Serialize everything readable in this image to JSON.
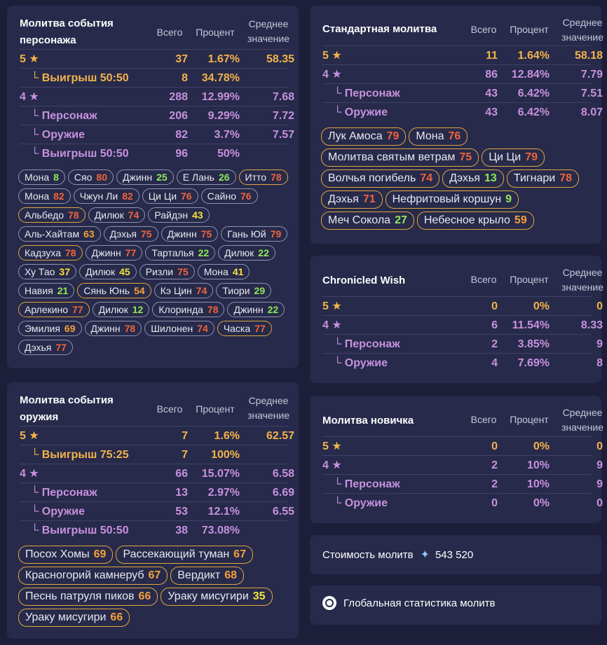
{
  "colors": {
    "bg": "#1d1e3a",
    "card": "#272a4a",
    "gold": "#f2b34a",
    "purple": "#c791de",
    "red": "#f0643c",
    "green": "#8fe85a",
    "yellow": "#f4e23c"
  },
  "headers": {
    "total": "Всего",
    "percent": "Процент",
    "avg": "Среднее значение"
  },
  "character": {
    "title": "Молитва события персонажа",
    "rows": [
      {
        "label": "5 ★",
        "total": "37",
        "pct": "1.67%",
        "avg": "58.35",
        "color": "gold"
      },
      {
        "label": "└ Выигрыш 50:50",
        "total": "8",
        "pct": "34.78%",
        "avg": "",
        "color": "gold"
      },
      {
        "label": "4 ★",
        "total": "288",
        "pct": "12.99%",
        "avg": "7.68",
        "color": "purp"
      },
      {
        "label": "└ Персонаж",
        "total": "206",
        "pct": "9.29%",
        "avg": "7.72",
        "color": "purp"
      },
      {
        "label": "└ Оружие",
        "total": "82",
        "pct": "3.7%",
        "avg": "7.57",
        "color": "purp"
      },
      {
        "label": "└ Выигрыш 50:50",
        "total": "96",
        "pct": "50%",
        "avg": "",
        "color": "purp"
      }
    ],
    "chips": [
      {
        "name": "Мона",
        "n": "8",
        "c": "green",
        "b": ""
      },
      {
        "name": "Сяо",
        "n": "80",
        "c": "red",
        "b": ""
      },
      {
        "name": "Джинн",
        "n": "25",
        "c": "green",
        "b": ""
      },
      {
        "name": "Е Лань",
        "n": "26",
        "c": "green",
        "b": ""
      },
      {
        "name": "Итто",
        "n": "78",
        "c": "red",
        "b": "gold"
      },
      {
        "name": "Мона",
        "n": "82",
        "c": "red",
        "b": ""
      },
      {
        "name": "Чжун Ли",
        "n": "82",
        "c": "red",
        "b": ""
      },
      {
        "name": "Ци Ци",
        "n": "76",
        "c": "red",
        "b": ""
      },
      {
        "name": "Сайно",
        "n": "76",
        "c": "red",
        "b": ""
      },
      {
        "name": "Альбедо",
        "n": "78",
        "c": "red",
        "b": "gold"
      },
      {
        "name": "Дилюк",
        "n": "74",
        "c": "red",
        "b": ""
      },
      {
        "name": "Райдэн",
        "n": "43",
        "c": "yellow",
        "b": ""
      },
      {
        "name": "Аль-Хайтам",
        "n": "63",
        "c": "orange",
        "b": ""
      },
      {
        "name": "Дэхья",
        "n": "75",
        "c": "red",
        "b": ""
      },
      {
        "name": "Джинн",
        "n": "75",
        "c": "red",
        "b": ""
      },
      {
        "name": "Гань Юй",
        "n": "79",
        "c": "red",
        "b": ""
      },
      {
        "name": "Кадзуха",
        "n": "78",
        "c": "red",
        "b": "gold"
      },
      {
        "name": "Джинн",
        "n": "77",
        "c": "red",
        "b": ""
      },
      {
        "name": "Тарталья",
        "n": "22",
        "c": "green",
        "b": ""
      },
      {
        "name": "Дилюк",
        "n": "22",
        "c": "green",
        "b": ""
      },
      {
        "name": "Ху Тао",
        "n": "37",
        "c": "yellow",
        "b": ""
      },
      {
        "name": "Дилюк",
        "n": "45",
        "c": "yellow",
        "b": ""
      },
      {
        "name": "Ризли",
        "n": "75",
        "c": "red",
        "b": ""
      },
      {
        "name": "Мона",
        "n": "41",
        "c": "yellow",
        "b": ""
      },
      {
        "name": "Навия",
        "n": "21",
        "c": "green",
        "b": ""
      },
      {
        "name": "Сянь Юнь",
        "n": "54",
        "c": "orange",
        "b": "gold"
      },
      {
        "name": "Кэ Цин",
        "n": "74",
        "c": "red",
        "b": ""
      },
      {
        "name": "Тиори",
        "n": "29",
        "c": "green",
        "b": ""
      },
      {
        "name": "Арлекино",
        "n": "77",
        "c": "red",
        "b": "gold"
      },
      {
        "name": "Дилюк",
        "n": "12",
        "c": "green",
        "b": ""
      },
      {
        "name": "Клоринда",
        "n": "78",
        "c": "red",
        "b": ""
      },
      {
        "name": "Джинн",
        "n": "22",
        "c": "green",
        "b": ""
      },
      {
        "name": "Эмилия",
        "n": "69",
        "c": "orange",
        "b": ""
      },
      {
        "name": "Джинн",
        "n": "78",
        "c": "red",
        "b": ""
      },
      {
        "name": "Шилонен",
        "n": "74",
        "c": "red",
        "b": ""
      },
      {
        "name": "Часка",
        "n": "77",
        "c": "red",
        "b": "gold"
      },
      {
        "name": "Дэхья",
        "n": "77",
        "c": "red",
        "b": ""
      }
    ]
  },
  "weapon": {
    "title": "Молитва события оружия",
    "rows": [
      {
        "label": "5 ★",
        "total": "7",
        "pct": "1.6%",
        "avg": "62.57",
        "color": "gold"
      },
      {
        "label": "└ Выигрыш 75:25",
        "total": "7",
        "pct": "100%",
        "avg": "",
        "color": "gold"
      },
      {
        "label": "4 ★",
        "total": "66",
        "pct": "15.07%",
        "avg": "6.58",
        "color": "purp"
      },
      {
        "label": "└ Персонаж",
        "total": "13",
        "pct": "2.97%",
        "avg": "6.69",
        "color": "purp"
      },
      {
        "label": "└ Оружие",
        "total": "53",
        "pct": "12.1%",
        "avg": "6.55",
        "color": "purp"
      },
      {
        "label": "└ Выигрыш 50:50",
        "total": "38",
        "pct": "73.08%",
        "avg": "",
        "color": "purp"
      }
    ],
    "chips": [
      {
        "name": "Посох Хомы",
        "n": "69",
        "c": "orange",
        "b": "gold"
      },
      {
        "name": "Рассекающий туман",
        "n": "67",
        "c": "orange",
        "b": "gold"
      },
      {
        "name": "Красногорий камнеруб",
        "n": "67",
        "c": "orange",
        "b": "gold"
      },
      {
        "name": "Вердикт",
        "n": "68",
        "c": "orange",
        "b": "gold"
      },
      {
        "name": "Песнь патруля пиков",
        "n": "66",
        "c": "orange",
        "b": "gold"
      },
      {
        "name": "Ураку мисугири",
        "n": "35",
        "c": "yellow",
        "b": "gold"
      },
      {
        "name": "Ураку мисугири",
        "n": "66",
        "c": "orange",
        "b": "gold"
      }
    ]
  },
  "standard": {
    "title": "Стандартная молитва",
    "rows": [
      {
        "label": "5 ★",
        "total": "11",
        "pct": "1.64%",
        "avg": "58.18",
        "color": "gold"
      },
      {
        "label": "4 ★",
        "total": "86",
        "pct": "12.84%",
        "avg": "7.79",
        "color": "purp"
      },
      {
        "label": "└ Персонаж",
        "total": "43",
        "pct": "6.42%",
        "avg": "7.51",
        "color": "purp"
      },
      {
        "label": "└ Оружие",
        "total": "43",
        "pct": "6.42%",
        "avg": "8.07",
        "color": "purp"
      }
    ],
    "chips": [
      {
        "name": "Лук Амоса",
        "n": "79",
        "c": "red",
        "b": "gold"
      },
      {
        "name": "Мона",
        "n": "76",
        "c": "red",
        "b": "gold"
      },
      {
        "name": "Молитва святым ветрам",
        "n": "75",
        "c": "red",
        "b": "gold"
      },
      {
        "name": "Ци Ци",
        "n": "79",
        "c": "red",
        "b": "gold"
      },
      {
        "name": "Волчья погибель",
        "n": "74",
        "c": "red",
        "b": "gold"
      },
      {
        "name": "Дэхья",
        "n": "13",
        "c": "green",
        "b": "gold"
      },
      {
        "name": "Тигнари",
        "n": "78",
        "c": "red",
        "b": "gold"
      },
      {
        "name": "Дэхья",
        "n": "71",
        "c": "red",
        "b": "gold"
      },
      {
        "name": "Нефритовый коршун",
        "n": "9",
        "c": "green",
        "b": "gold"
      },
      {
        "name": "Меч Сокола",
        "n": "27",
        "c": "green",
        "b": "gold"
      },
      {
        "name": "Небесное крыло",
        "n": "59",
        "c": "orange",
        "b": "gold"
      }
    ]
  },
  "chronicled": {
    "title": "Chronicled Wish",
    "rows": [
      {
        "label": "5 ★",
        "total": "0",
        "pct": "0%",
        "avg": "0",
        "color": "gold"
      },
      {
        "label": "4 ★",
        "total": "6",
        "pct": "11.54%",
        "avg": "8.33",
        "color": "purp"
      },
      {
        "label": "└ Персонаж",
        "total": "2",
        "pct": "3.85%",
        "avg": "9",
        "color": "purp"
      },
      {
        "label": "└ Оружие",
        "total": "4",
        "pct": "7.69%",
        "avg": "8",
        "color": "purp"
      }
    ]
  },
  "beginner": {
    "title": "Молитва новичка",
    "rows": [
      {
        "label": "5 ★",
        "total": "0",
        "pct": "0%",
        "avg": "0",
        "color": "gold"
      },
      {
        "label": "4 ★",
        "total": "2",
        "pct": "10%",
        "avg": "9",
        "color": "purp"
      },
      {
        "label": "└ Персонаж",
        "total": "2",
        "pct": "10%",
        "avg": "9",
        "color": "purp"
      },
      {
        "label": "└ Оружие",
        "total": "0",
        "pct": "0%",
        "avg": "0",
        "color": "purp"
      }
    ]
  },
  "cost": {
    "label": "Стоимость молитв",
    "value": "543 520"
  },
  "global": {
    "label": "Глобальная статистика молитв"
  }
}
